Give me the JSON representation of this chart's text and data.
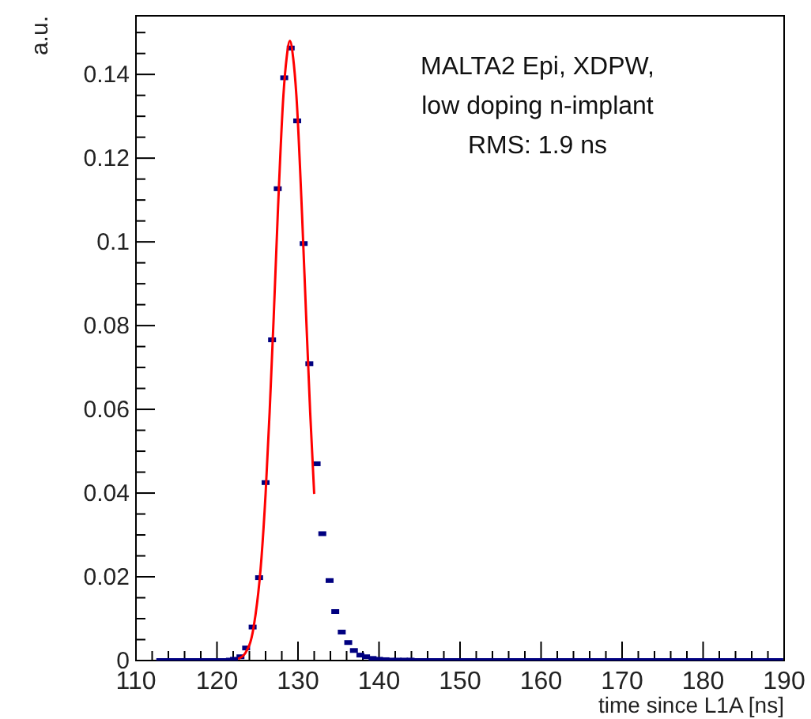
{
  "chart_data": {
    "type": "scatter",
    "xlabel": "time since L1A [ns]",
    "ylabel": "a.u.",
    "annotations": [
      "MALTA2 Epi, XDPW,",
      "low doping n-implant",
      "RMS: 1.9 ns"
    ],
    "xlim": [
      110,
      190
    ],
    "ylim": [
      0,
      0.154
    ],
    "xticks": [
      110,
      {
        "value": 112,
        "label": null
      },
      {
        "value": 114,
        "label": null
      },
      {
        "value": 116,
        "label": null
      },
      {
        "value": 118,
        "label": null
      },
      120,
      {
        "value": 122,
        "label": null
      },
      {
        "value": 124,
        "label": null
      },
      {
        "value": 126,
        "label": null
      },
      {
        "value": 128,
        "label": null
      },
      130,
      {
        "value": 132,
        "label": null
      },
      {
        "value": 134,
        "label": null
      },
      {
        "value": 136,
        "label": null
      },
      {
        "value": 138,
        "label": null
      },
      140,
      {
        "value": 142,
        "label": null
      },
      {
        "value": 144,
        "label": null
      },
      {
        "value": 146,
        "label": null
      },
      {
        "value": 148,
        "label": null
      },
      150,
      {
        "value": 152,
        "label": null
      },
      {
        "value": 154,
        "label": null
      },
      {
        "value": 156,
        "label": null
      },
      {
        "value": 158,
        "label": null
      },
      160,
      {
        "value": 162,
        "label": null
      },
      {
        "value": 164,
        "label": null
      },
      {
        "value": 166,
        "label": null
      },
      {
        "value": 168,
        "label": null
      },
      170,
      {
        "value": 172,
        "label": null
      },
      {
        "value": 174,
        "label": null
      },
      {
        "value": 176,
        "label": null
      },
      {
        "value": 178,
        "label": null
      },
      180,
      {
        "value": 182,
        "label": null
      },
      {
        "value": 184,
        "label": null
      },
      {
        "value": 186,
        "label": null
      },
      {
        "value": 188,
        "label": null
      },
      190
    ],
    "yticks": [
      0,
      {
        "value": 0.005,
        "label": null
      },
      {
        "value": 0.01,
        "label": null
      },
      {
        "value": 0.015,
        "label": null
      },
      0.02,
      {
        "value": 0.025,
        "label": null
      },
      {
        "value": 0.03,
        "label": null
      },
      {
        "value": 0.035,
        "label": null
      },
      0.04,
      {
        "value": 0.045,
        "label": null
      },
      {
        "value": 0.05,
        "label": null
      },
      {
        "value": 0.055,
        "label": null
      },
      0.06,
      {
        "value": 0.065,
        "label": null
      },
      {
        "value": 0.07,
        "label": null
      },
      {
        "value": 0.075,
        "label": null
      },
      0.08,
      {
        "value": 0.085,
        "label": null
      },
      {
        "value": 0.09,
        "label": null
      },
      {
        "value": 0.095,
        "label": null
      },
      0.1,
      {
        "value": 0.105,
        "label": null
      },
      {
        "value": 0.11,
        "label": null
      },
      {
        "value": 0.115,
        "label": null
      },
      0.12,
      {
        "value": 0.125,
        "label": null
      },
      {
        "value": 0.13,
        "label": null
      },
      {
        "value": 0.135,
        "label": null
      },
      0.14,
      {
        "value": 0.145,
        "label": null
      },
      {
        "value": 0.15,
        "label": null
      }
    ],
    "grid": false,
    "series": [
      {
        "marker": "square",
        "color": "#000080",
        "x": [
          113.0,
          113.8,
          114.6,
          115.3,
          116.1,
          116.9,
          117.7,
          118.5,
          119.2,
          120.0,
          120.8,
          121.6,
          122.1,
          122.9,
          123.6,
          124.4,
          125.2,
          126.0,
          126.8,
          127.5,
          128.3,
          129.1,
          129.9,
          130.7,
          131.4,
          132.3,
          133.0,
          133.9,
          134.6,
          135.4,
          136.2,
          136.9,
          137.7,
          138.4,
          139.2,
          140.0,
          140.8,
          141.5,
          142.3,
          143.1,
          143.9,
          144.7,
          145.5,
          146.2,
          147.0,
          147.8,
          148.6,
          149.4,
          150.2,
          151.0,
          151.7,
          152.5,
          153.3,
          154.1,
          154.9,
          155.7,
          156.4,
          157.2,
          158.0,
          158.8,
          159.6,
          160.4,
          161.2,
          161.9,
          162.7,
          163.5,
          164.3,
          165.1,
          165.9,
          166.6,
          167.4,
          168.2,
          169.0,
          169.8,
          170.6,
          171.4,
          172.1,
          172.9,
          173.7,
          174.5,
          175.3,
          176.1,
          176.8,
          177.6,
          178.4,
          179.2,
          180.0,
          180.8,
          181.6,
          182.3,
          183.1,
          183.9,
          184.7,
          185.5,
          186.3,
          187.0,
          187.8,
          188.6,
          189.4
        ],
        "values": [
          0,
          0,
          0,
          0,
          0,
          0,
          0,
          0,
          0,
          0,
          0,
          0.0001,
          0.0003,
          0.0009,
          0.003,
          0.008,
          0.0198,
          0.0425,
          0.0766,
          0.1127,
          0.1392,
          0.1463,
          0.1289,
          0.0996,
          0.0709,
          0.047,
          0.0303,
          0.0191,
          0.0117,
          0.0068,
          0.0043,
          0.0024,
          0.0013,
          0.0009,
          0.0005,
          0.0003,
          0.0002,
          0.0001,
          0.0001,
          0.0001,
          0.0001,
          0,
          0,
          0,
          0,
          0,
          0,
          0,
          0,
          0,
          0,
          0,
          0,
          0,
          0,
          0,
          0,
          0,
          0,
          0,
          0,
          0,
          0,
          0,
          0,
          0,
          0,
          0,
          0,
          0,
          0,
          0,
          0,
          0,
          0,
          0,
          0,
          0,
          0,
          0,
          0,
          0,
          0,
          0,
          0,
          0,
          0,
          0,
          0,
          0,
          0,
          0,
          0,
          0,
          0,
          0,
          0,
          0,
          0
        ]
      },
      {
        "type": "line",
        "marker": "none",
        "line_style": "solid",
        "color": "#ff0000",
        "x": [
          122.6,
          123.5,
          124.5,
          125.5,
          126.0,
          126.5,
          127.0,
          127.5,
          128.2,
          128.6,
          129.0,
          129.4,
          129.8,
          130.5,
          131.0,
          131.5,
          132.0
        ],
        "values": [
          0.0004,
          0.0018,
          0.0077,
          0.0247,
          0.0398,
          0.0594,
          0.082,
          0.1065,
          0.135,
          0.144,
          0.148,
          0.144,
          0.135,
          0.1065,
          0.0825,
          0.0594,
          0.0398
        ]
      }
    ]
  }
}
